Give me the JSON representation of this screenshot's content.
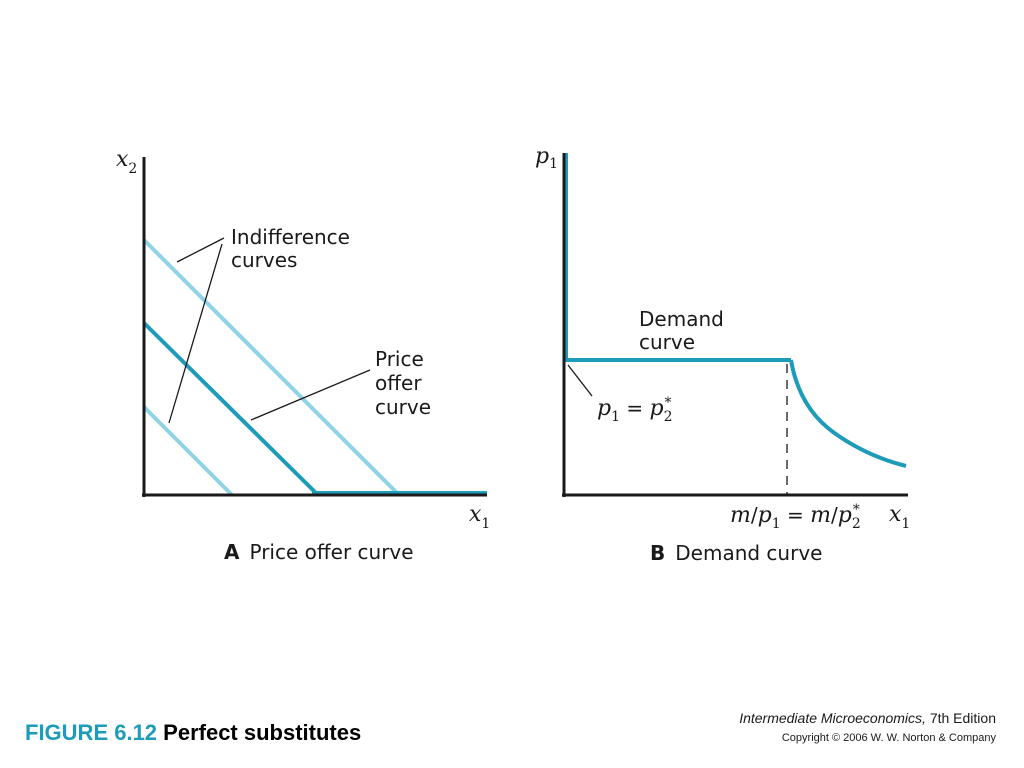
{
  "colors": {
    "dark_curve": "#1e9bb9",
    "light_curve": "#8fd3e6",
    "axis": "#1a1a1a",
    "figure_number": "#1e9bb9"
  },
  "panel_a": {
    "y_axis_var": "x",
    "y_axis_sub": "2",
    "x_axis_var": "x",
    "x_axis_sub": "1",
    "indiff_label_line1": "Indifference",
    "indiff_label_line2": "curves",
    "offer_label_line1": "Price",
    "offer_label_line2": "offer",
    "offer_label_line3": "curve",
    "caption_letter": "A",
    "caption_text": "Price offer curve"
  },
  "panel_b": {
    "y_axis_var": "p",
    "y_axis_sub": "1",
    "x_axis_var": "x",
    "x_axis_sub": "1",
    "demand_label_line1": "Demand",
    "demand_label_line2": "curve",
    "price_eq_lhs": "p",
    "price_eq_lhs_sub": "1",
    "price_eq_mid": " = ",
    "price_eq_rhs": "p",
    "price_eq_rhs_sub": "2",
    "price_eq_star": "*",
    "x_tick_a": "m",
    "x_tick_slash1": "/",
    "x_tick_p": "p",
    "x_tick_sub1": "1",
    "x_tick_eq": " = ",
    "x_tick_m2": "m",
    "x_tick_slash2": "/",
    "x_tick_p2": "p",
    "x_tick_sub2": "2",
    "x_tick_star": "*",
    "caption_letter": "B",
    "caption_text": "Demand curve"
  },
  "footer": {
    "figure_number": "FIGURE 6.12",
    "figure_title": " Perfect substitutes",
    "book_title": "Intermediate Microeconomics,",
    "book_edition": " 7th Edition",
    "copyright": "Copyright © 2006 W. W. Norton & Company"
  }
}
